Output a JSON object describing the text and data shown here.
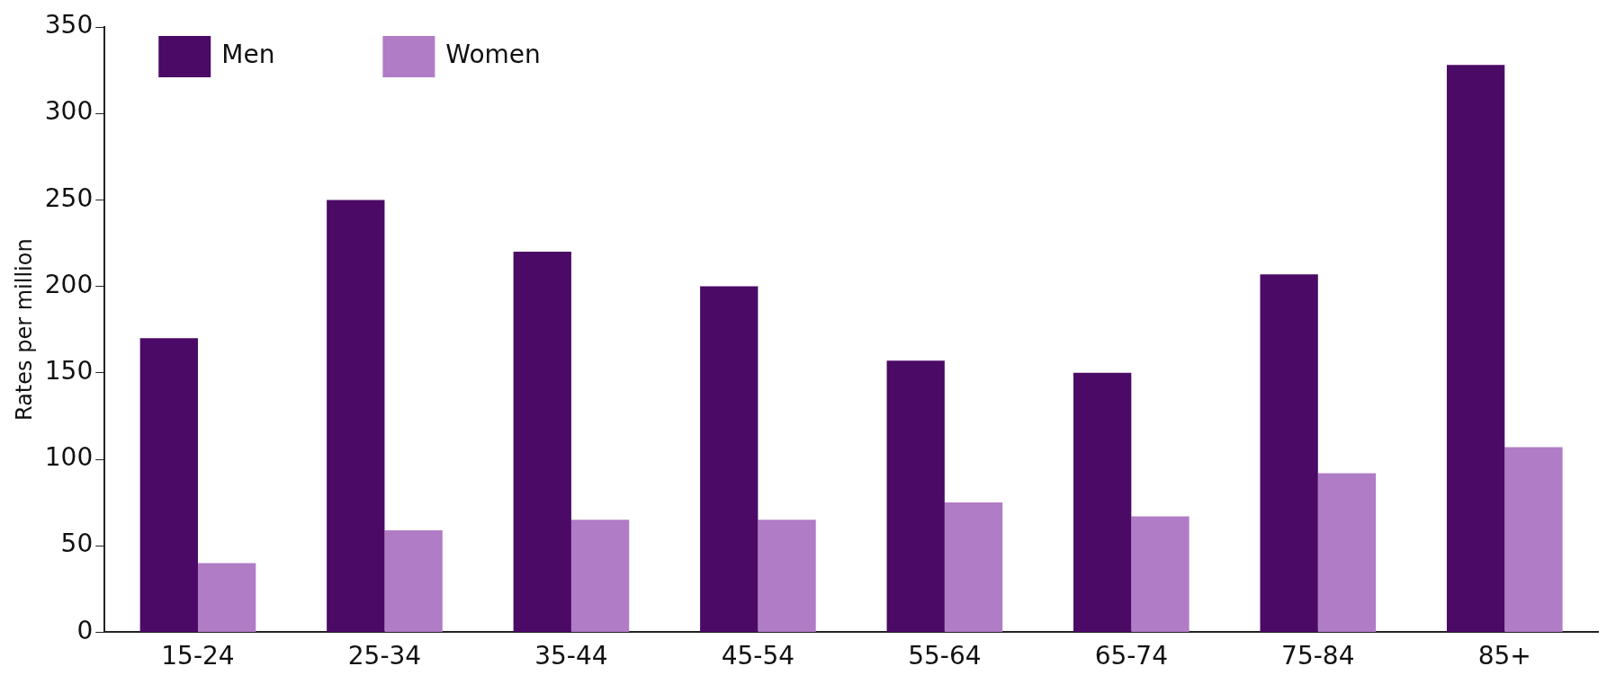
{
  "chart_data": {
    "type": "bar",
    "ylabel": "Rates per million",
    "categories": [
      "15-24",
      "25-34",
      "35-44",
      "45-54",
      "55-64",
      "65-74",
      "75-84",
      "85+"
    ],
    "series": [
      {
        "name": "Men",
        "color": "#4b0a66",
        "values": [
          170,
          250,
          220,
          200,
          157,
          150,
          207,
          328
        ]
      },
      {
        "name": "Women",
        "color": "#b07cc6",
        "values": [
          40,
          59,
          65,
          65,
          75,
          67,
          92,
          107
        ]
      }
    ],
    "ylim": [
      0,
      350
    ],
    "yticks": [
      0,
      50,
      100,
      150,
      200,
      250,
      300,
      350
    ],
    "grid": false,
    "legend": "top left"
  }
}
